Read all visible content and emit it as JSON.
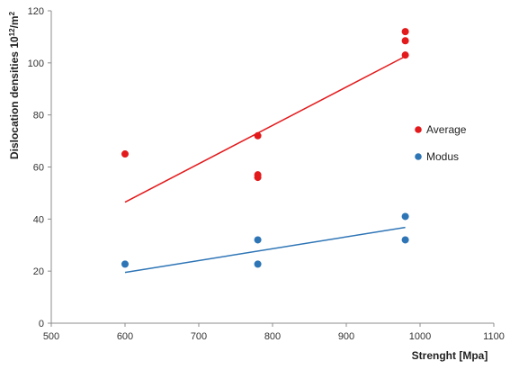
{
  "chart_data": {
    "type": "scatter",
    "xlabel": "Strenght [Mpa]",
    "ylabel_main": "Dislocation densities 10",
    "ylabel_sup": "12",
    "ylabel_unit": "/m",
    "ylabel_sup2": "2",
    "xlim": [
      500,
      1100
    ],
    "ylim": [
      0,
      120
    ],
    "x_ticks": [
      "500",
      "600",
      "700",
      "800",
      "900",
      "1000",
      "1100"
    ],
    "y_ticks": [
      "0",
      "20",
      "40",
      "60",
      "80",
      "100",
      "120"
    ],
    "grid": false,
    "legend_position": "right",
    "series": [
      {
        "name": "Average",
        "color": "#e31a1c",
        "points": [
          [
            600,
            65
          ],
          [
            780,
            72
          ],
          [
            780,
            57
          ],
          [
            780,
            56
          ],
          [
            980,
            112
          ],
          [
            980,
            108.5
          ],
          [
            980,
            103
          ]
        ],
        "trendline": [
          [
            600,
            46.5
          ],
          [
            980,
            102.5
          ]
        ]
      },
      {
        "name": "Modus",
        "color": "#2e75b6",
        "points": [
          [
            600,
            22.7
          ],
          [
            780,
            32
          ],
          [
            780,
            22.7
          ],
          [
            980,
            41
          ],
          [
            980,
            32
          ]
        ],
        "trendline": [
          [
            600,
            19.5
          ],
          [
            980,
            36.8
          ]
        ]
      }
    ]
  }
}
